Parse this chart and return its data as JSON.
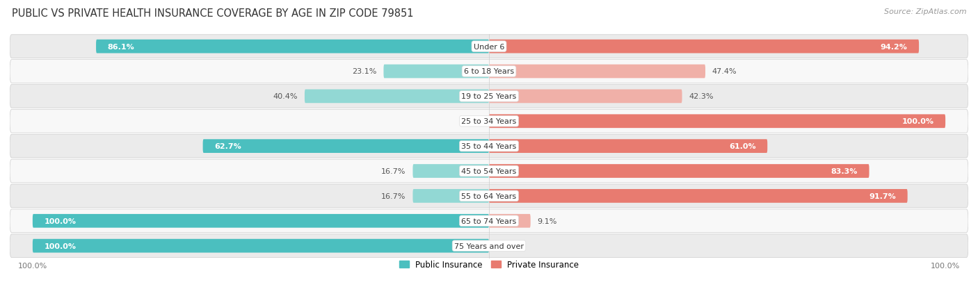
{
  "title": "PUBLIC VS PRIVATE HEALTH INSURANCE COVERAGE BY AGE IN ZIP CODE 79851",
  "source": "Source: ZipAtlas.com",
  "age_groups": [
    "Under 6",
    "6 to 18 Years",
    "19 to 25 Years",
    "25 to 34 Years",
    "35 to 44 Years",
    "45 to 54 Years",
    "55 to 64 Years",
    "65 to 74 Years",
    "75 Years and over"
  ],
  "public_values": [
    86.1,
    23.1,
    40.4,
    0.0,
    62.7,
    16.7,
    16.7,
    100.0,
    100.0
  ],
  "private_values": [
    94.2,
    47.4,
    42.3,
    100.0,
    61.0,
    83.3,
    91.7,
    9.1,
    0.0
  ],
  "public_color": "#4bbfbf",
  "private_color": "#e87b70",
  "public_color_light": "#92d8d4",
  "private_color_light": "#f0b0a8",
  "bar_height": 0.55,
  "row_bg_gray": "#ebebeb",
  "row_bg_white": "#f8f8f8",
  "title_fontsize": 10.5,
  "label_fontsize": 8,
  "tick_fontsize": 8,
  "source_fontsize": 8
}
